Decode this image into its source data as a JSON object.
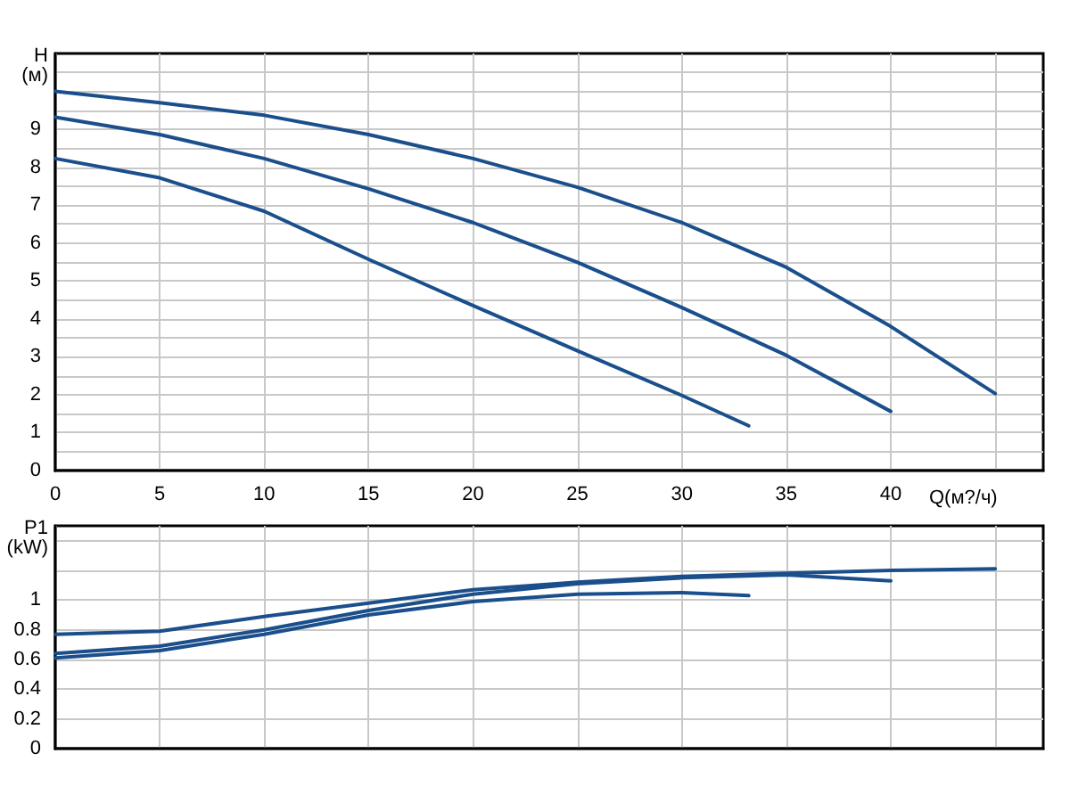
{
  "chart_data": [
    {
      "type": "line",
      "xlabel": "Q(м?/ч)",
      "ylabel": "H\n(м)",
      "xlim": [
        0,
        47.3
      ],
      "ylim": [
        0,
        11
      ],
      "xticks": [
        0,
        5,
        10,
        15,
        20,
        25,
        30,
        35,
        40,
        {
          "value": 45,
          "label": null
        }
      ],
      "yticks": [
        0,
        {
          "value": 0.5,
          "label": null
        },
        1,
        {
          "value": 1.5,
          "label": null
        },
        2,
        {
          "value": 2.5,
          "label": null
        },
        3,
        {
          "value": 3.5,
          "label": null
        },
        4,
        {
          "value": 4.5,
          "label": null
        },
        5,
        {
          "value": 5.5,
          "label": null
        },
        6,
        {
          "value": 6.5,
          "label": null
        },
        7,
        {
          "value": 7.5,
          "label": null
        },
        8,
        {
          "value": 8.5,
          "label": null
        },
        9,
        {
          "value": 9.5,
          "label": null
        },
        {
          "value": 10,
          "label": null
        },
        {
          "value": 10.5,
          "label": null
        }
      ],
      "grid": true,
      "marker": "none",
      "line_style": "solid",
      "series": [
        {
          "color": "#1b4f8c",
          "x": [
            0,
            5,
            10,
            15,
            20,
            25,
            30,
            35,
            40,
            45
          ],
          "values": [
            10.0,
            9.7,
            9.37,
            8.86,
            8.23,
            7.47,
            6.54,
            5.36,
            3.8,
            2.03
          ]
        },
        {
          "color": "#1b4f8c",
          "x": [
            0,
            5,
            10,
            15,
            20,
            25,
            30,
            35,
            40
          ],
          "values": [
            9.32,
            8.86,
            8.23,
            7.43,
            6.54,
            5.49,
            4.3,
            3.04,
            1.56
          ]
        },
        {
          "color": "#1b4f8c",
          "x": [
            0,
            5,
            10,
            15,
            20,
            25,
            30,
            33.2
          ],
          "values": [
            8.23,
            7.72,
            6.84,
            5.57,
            4.35,
            3.16,
            1.98,
            1.18
          ]
        }
      ]
    },
    {
      "type": "line",
      "ylabel": "P1\n(kW)",
      "xlim": [
        0,
        47.3
      ],
      "ylim": [
        0,
        1.5
      ],
      "xticks": [
        {
          "value": 0,
          "label": null
        },
        {
          "value": 5,
          "label": null
        },
        {
          "value": 10,
          "label": null
        },
        {
          "value": 15,
          "label": null
        },
        {
          "value": 20,
          "label": null
        },
        {
          "value": 25,
          "label": null
        },
        {
          "value": 30,
          "label": null
        },
        {
          "value": 35,
          "label": null
        },
        {
          "value": 40,
          "label": null
        },
        {
          "value": 45,
          "label": null
        }
      ],
      "yticks": [
        0,
        0.2,
        0.4,
        0.6,
        0.8,
        1,
        {
          "value": 1.2,
          "label": null
        },
        {
          "value": 1.4,
          "label": null
        }
      ],
      "tick_labels": "y",
      "grid": true,
      "marker": "none",
      "line_style": "solid",
      "series": [
        {
          "color": "#1b4f8c",
          "x": [
            0,
            5,
            10,
            15,
            20,
            25,
            30,
            35,
            40,
            45
          ],
          "values": [
            0.77,
            0.79,
            0.89,
            0.98,
            1.07,
            1.12,
            1.16,
            1.18,
            1.2,
            1.21
          ]
        },
        {
          "color": "#1b4f8c",
          "x": [
            0,
            5,
            10,
            15,
            20,
            25,
            30,
            35,
            40
          ],
          "values": [
            0.64,
            0.69,
            0.8,
            0.93,
            1.04,
            1.11,
            1.15,
            1.17,
            1.13
          ]
        },
        {
          "color": "#1b4f8c",
          "x": [
            0,
            5,
            10,
            15,
            20,
            25,
            30,
            33.2
          ],
          "values": [
            0.61,
            0.66,
            0.77,
            0.9,
            0.99,
            1.04,
            1.05,
            1.03
          ]
        }
      ]
    }
  ]
}
